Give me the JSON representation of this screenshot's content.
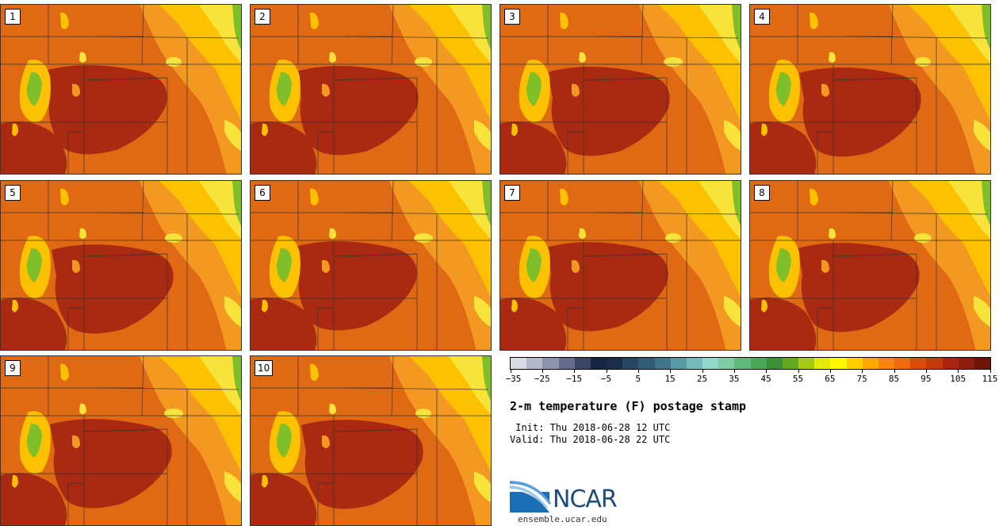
{
  "panels": [
    {
      "label": "1"
    },
    {
      "label": "2"
    },
    {
      "label": "3"
    },
    {
      "label": "4"
    },
    {
      "label": "5"
    },
    {
      "label": "6"
    },
    {
      "label": "7"
    },
    {
      "label": "8"
    },
    {
      "label": "9"
    },
    {
      "label": "10"
    }
  ],
  "title": "2-m temperature (F) postage stamp",
  "init": " Init: Thu 2018-06-28 12 UTC",
  "valid": "Valid: Thu 2018-06-28 22 UTC",
  "logo": {
    "name": "NCAR",
    "url": "ensemble.ucar.edu"
  },
  "colorbar": {
    "tick_labels": [
      "−35",
      "−25",
      "−15",
      "−5",
      "5",
      "15",
      "25",
      "35",
      "45",
      "55",
      "65",
      "75",
      "85",
      "95",
      "105",
      "115"
    ],
    "colors": [
      "#d9dce6",
      "#b3b8c8",
      "#8d93aa",
      "#656d8c",
      "#3a4466",
      "#172442",
      "#1c2f4a",
      "#274662",
      "#325c78",
      "#3f7489",
      "#5a9aa3",
      "#74bab9",
      "#92d8cc",
      "#7fcca3",
      "#62b97e",
      "#4ca65a",
      "#3b9237",
      "#63a81f",
      "#a6cc10",
      "#e5e90b",
      "#fff700",
      "#ffcf00",
      "#ffa800",
      "#f8870c",
      "#ee6a0b",
      "#de4a0a",
      "#c73a0b",
      "#a9250f",
      "#8e1d0c",
      "#6d1409"
    ]
  },
  "colors": {
    "hot": "#a92a10",
    "warm": "#e06a14",
    "mid": "#f39820",
    "yellow": "#fcc100",
    "lightyellow": "#f8e33a",
    "green": "#7fbf2a",
    "border": "#333333"
  }
}
